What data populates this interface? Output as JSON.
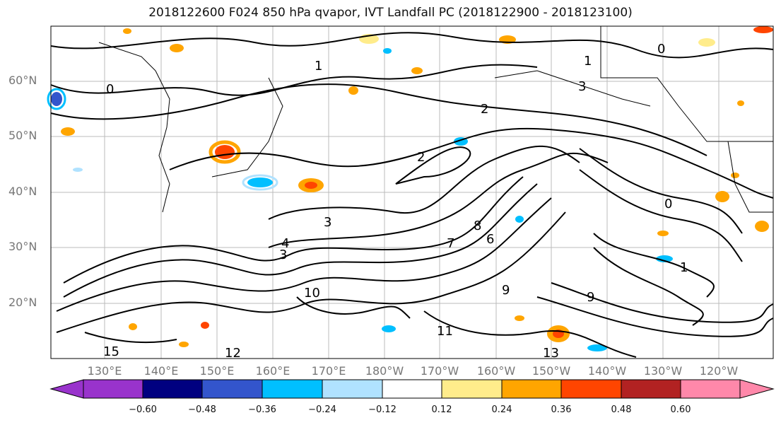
{
  "title": "2018122600 F024 850 hPa qvapor, IVT Landfall PC (2018122900 - 2018123100)",
  "map": {
    "lat_labels": [
      "60°N",
      "50°N",
      "40°N",
      "30°N",
      "20°N"
    ],
    "lon_labels": [
      "130°E",
      "140°E",
      "150°E",
      "160°E",
      "170°E",
      "180°W",
      "170°W",
      "160°W",
      "150°W",
      "140°W",
      "130°W",
      "120°W"
    ],
    "contour_labels": [
      "0",
      "0",
      "1",
      "2",
      "3",
      "3",
      "4",
      "8",
      "9",
      "10",
      "11",
      "13",
      "15",
      "7",
      "6",
      "1",
      "9",
      "0",
      "1",
      "2",
      "3",
      "12"
    ]
  },
  "colorbar": {
    "ticks": [
      "−0.60",
      "−0.48",
      "−0.36",
      "−0.24",
      "−0.12",
      "0.12",
      "0.24",
      "0.36",
      "0.48",
      "0.60"
    ],
    "colors": [
      "#9933cc",
      "#000080",
      "#3355cc",
      "#00bfff",
      "#b0e2ff",
      "#ffffff",
      "#ffec8b",
      "#ffa500",
      "#ff4500",
      "#b22222",
      "#ff88aa"
    ]
  }
}
